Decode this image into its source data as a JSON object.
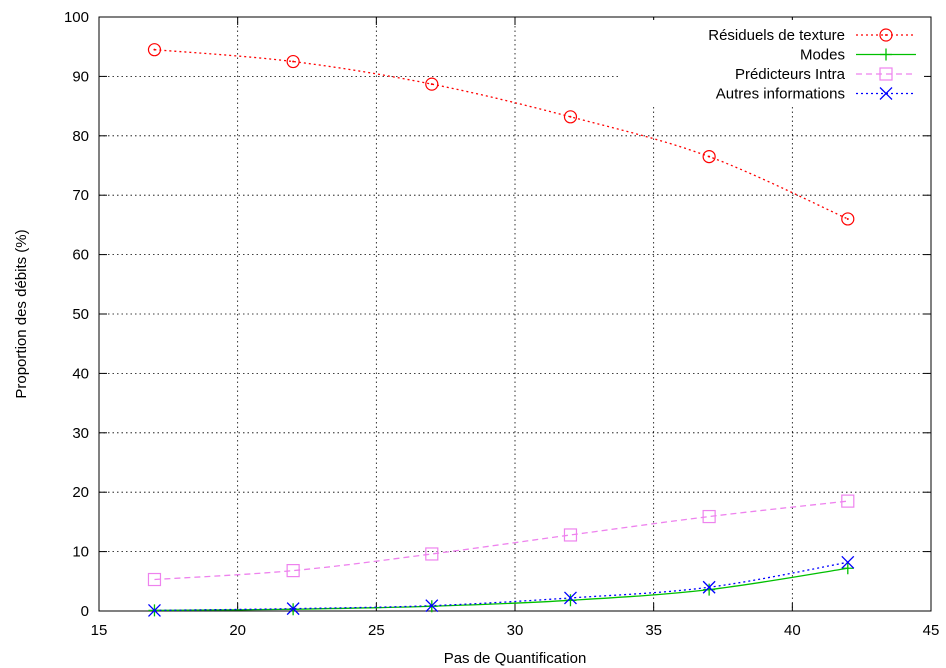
{
  "chart_data": {
    "type": "line",
    "title": "",
    "xlabel": "Pas de Quantification",
    "ylabel": "Proportion des débits (%)",
    "xlim": [
      15,
      45
    ],
    "ylim": [
      0,
      100
    ],
    "xticks": [
      15,
      20,
      25,
      30,
      35,
      40,
      45
    ],
    "yticks": [
      0,
      10,
      20,
      30,
      40,
      50,
      60,
      70,
      80,
      90,
      100
    ],
    "grid": true,
    "legend_position": "top-right",
    "x": [
      17,
      22,
      27,
      32,
      37,
      42
    ],
    "series": [
      {
        "name": "Résiduels de texture",
        "values": [
          94.5,
          92.5,
          88.7,
          83.2,
          76.5,
          66.0
        ],
        "color": "#ff0000",
        "marker": "circle",
        "dash": "dotted"
      },
      {
        "name": "Modes",
        "values": [
          0.1,
          0.3,
          0.8,
          1.8,
          3.6,
          7.2
        ],
        "color": "#00c000",
        "marker": "plus",
        "dash": "solid"
      },
      {
        "name": "Prédicteurs Intra",
        "values": [
          5.3,
          6.8,
          9.6,
          12.8,
          15.9,
          18.5
        ],
        "color": "#ee82ee",
        "marker": "square",
        "dash": "dashed"
      },
      {
        "name": "Autres informations",
        "values": [
          0.1,
          0.4,
          0.9,
          2.2,
          4.0,
          8.2
        ],
        "color": "#0000ff",
        "marker": "x",
        "dash": "dotted"
      }
    ]
  }
}
